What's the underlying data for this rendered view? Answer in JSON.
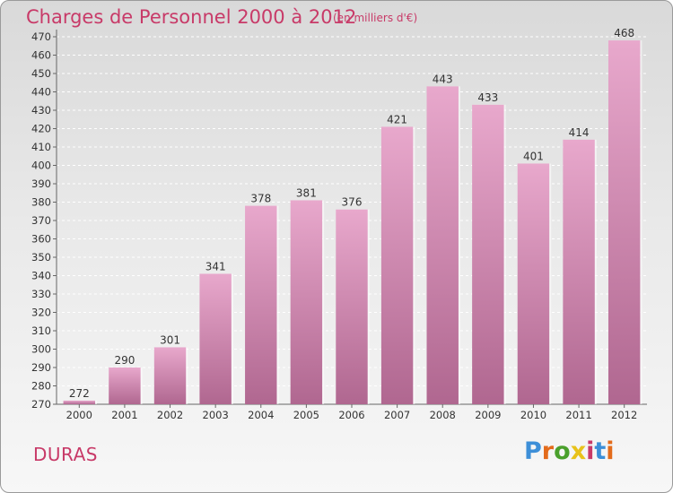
{
  "header": {
    "title": "Charges de Personnel 2000 à 2012",
    "subtitle": "(en milliers d'€)"
  },
  "footer": {
    "place": "DURAS",
    "logo_text": "Proxiti",
    "logo_colors": [
      "#3d8fd8",
      "#e36b1b",
      "#4aa02c",
      "#e8c21a",
      "#c83a68",
      "#3d8fd8",
      "#e36b1b"
    ]
  },
  "colors": {
    "accent": "#c83a68",
    "bar_top": "#e8a8cc",
    "bar_bottom": "#b06790"
  },
  "chart_data": {
    "type": "bar",
    "title": "Charges de Personnel 2000 à 2012",
    "subtitle": "(en milliers d'€)",
    "categories": [
      "2000",
      "2001",
      "2002",
      "2003",
      "2004",
      "2005",
      "2006",
      "2007",
      "2008",
      "2009",
      "2010",
      "2011",
      "2012"
    ],
    "values": [
      272,
      290,
      301,
      341,
      378,
      381,
      376,
      421,
      443,
      433,
      401,
      414,
      468
    ],
    "ylim": [
      270,
      470
    ],
    "ytick_step": 10,
    "grid": true,
    "legend": "none",
    "data_labels": true
  }
}
